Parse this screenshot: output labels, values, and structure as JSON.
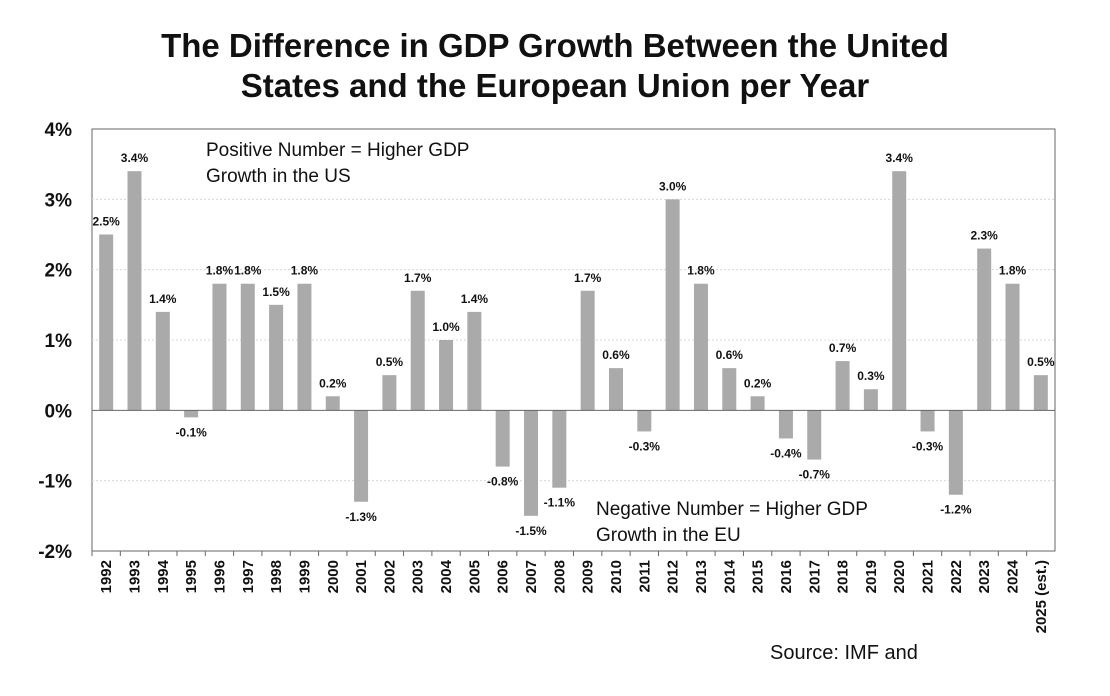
{
  "chart_data": {
    "type": "bar",
    "title_lines": [
      "The Difference in GDP Growth Between the United",
      "States and the European Union per Year"
    ],
    "categories": [
      "1992",
      "1993",
      "1994",
      "1995",
      "1996",
      "1997",
      "1998",
      "1999",
      "2000",
      "2001",
      "2002",
      "2003",
      "2004",
      "2005",
      "2006",
      "2007",
      "2008",
      "2009",
      "2010",
      "2011",
      "2012",
      "2013",
      "2014",
      "2015",
      "2016",
      "2017",
      "2018",
      "2019",
      "2020",
      "2021",
      "2022",
      "2023",
      "2024",
      "2025 (est.)"
    ],
    "values": [
      2.5,
      3.4,
      1.4,
      -0.1,
      1.8,
      1.8,
      1.5,
      1.8,
      0.2,
      -1.3,
      0.5,
      1.7,
      1.0,
      1.4,
      -0.8,
      -1.5,
      -1.1,
      1.7,
      0.6,
      -0.3,
      3.0,
      1.8,
      0.6,
      0.2,
      -0.4,
      -0.7,
      0.7,
      0.3,
      3.4,
      -0.3,
      -1.2,
      2.3,
      1.8,
      0.5
    ],
    "data_labels": [
      "2.5%",
      "3.4%",
      "1.4%",
      "-0.1%",
      "1.8%",
      "1.8%",
      "1.5%",
      "1.8%",
      "0.2%",
      "-1.3%",
      "0.5%",
      "1.7%",
      "1.0%",
      "1.4%",
      "-0.8%",
      "-1.5%",
      "-1.1%",
      "1.7%",
      "0.6%",
      "-0.3%",
      "3.0%",
      "1.8%",
      "0.6%",
      "0.2%",
      "-0.4%",
      "-0.7%",
      "0.7%",
      "0.3%",
      "3.4%",
      "-0.3%",
      "-1.2%",
      "2.3%",
      "1.8%",
      "0.5%"
    ],
    "ylim": [
      -2,
      4
    ],
    "yticks": [
      4,
      3,
      2,
      1,
      0,
      -1,
      -2
    ],
    "ytick_labels": [
      "4%",
      "3%",
      "2%",
      "1%",
      "0%",
      "-1%",
      "-2%"
    ],
    "grid": true,
    "annotations": [
      {
        "lines": [
          "Positive Number = Higher GDP",
          "Growth in the US"
        ]
      },
      {
        "lines": [
          "Negative Number = Higher GDP",
          "Growth in the EU"
        ]
      }
    ],
    "source": "Source: IMF and",
    "colors": {
      "bar": "#aaaaaa",
      "grid": "#d8d8d8",
      "axis": "#666666",
      "text": "#111111"
    }
  }
}
